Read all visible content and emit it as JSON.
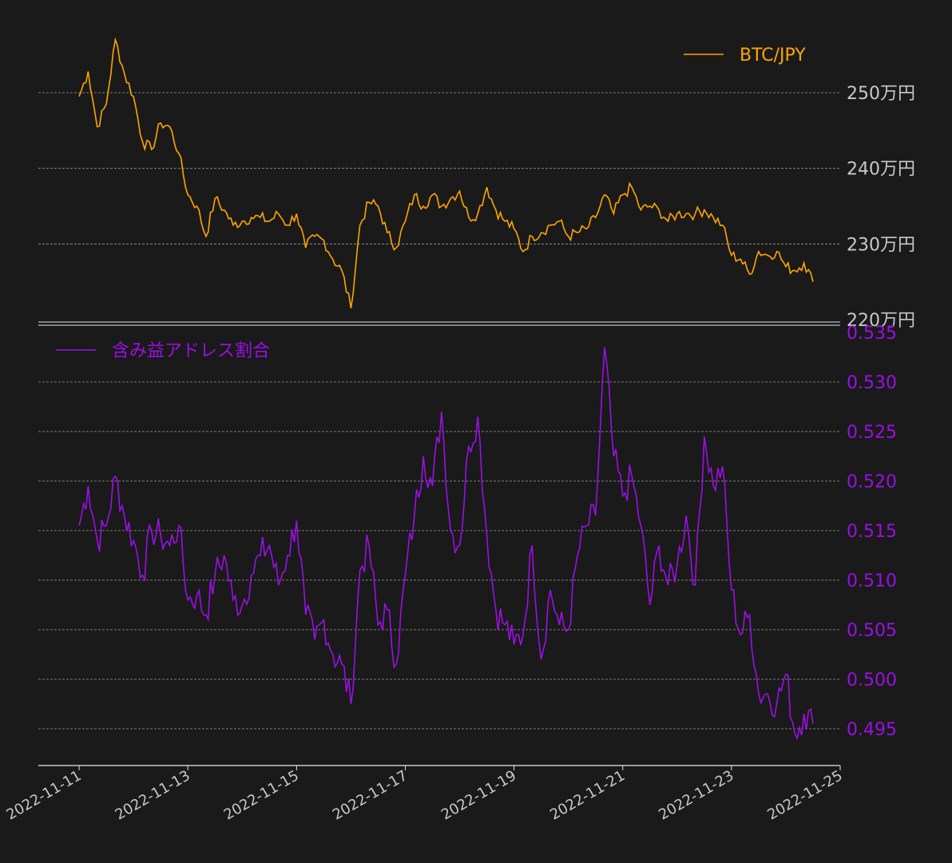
{
  "colors": {
    "background": "#1a1a1a",
    "btc": "#ffa500",
    "ratio": "#9b0fe6",
    "axis_text": "#c8c8c8",
    "grid": "#9a9a9a",
    "spine": "#e6e6e6"
  },
  "chart_data": [
    {
      "type": "line",
      "title": "",
      "xlabel": "",
      "ylabel": "",
      "legend_position": "top-right",
      "grid": true,
      "y_ticks": [
        220,
        230,
        240,
        250
      ],
      "y_tick_labels": [
        "220万円",
        "230万円",
        "240万円",
        "250万円"
      ],
      "ylim": [
        220,
        255
      ],
      "series": [
        {
          "name": "BTC/JPY",
          "color": "#ffa500",
          "x": [
            "2022-11-11 00:00",
            "2022-11-11 04:00",
            "2022-11-11 08:00",
            "2022-11-11 12:00",
            "2022-11-11 16:00",
            "2022-11-11 20:00",
            "2022-11-12 00:00",
            "2022-11-12 04:00",
            "2022-11-12 08:00",
            "2022-11-12 12:00",
            "2022-11-12 16:00",
            "2022-11-12 20:00",
            "2022-11-13 00:00",
            "2022-11-13 04:00",
            "2022-11-13 08:00",
            "2022-11-13 12:00",
            "2022-11-13 16:00",
            "2022-11-13 20:00",
            "2022-11-14 00:00",
            "2022-11-14 04:00",
            "2022-11-14 08:00",
            "2022-11-14 12:00",
            "2022-11-14 16:00",
            "2022-11-14 20:00",
            "2022-11-15 00:00",
            "2022-11-15 04:00",
            "2022-11-15 08:00",
            "2022-11-15 12:00",
            "2022-11-15 16:00",
            "2022-11-15 20:00",
            "2022-11-16 00:00",
            "2022-11-16 04:00",
            "2022-11-16 08:00",
            "2022-11-16 12:00",
            "2022-11-16 16:00",
            "2022-11-16 20:00",
            "2022-11-17 00:00",
            "2022-11-17 04:00",
            "2022-11-17 08:00",
            "2022-11-17 12:00",
            "2022-11-17 16:00",
            "2022-11-17 20:00",
            "2022-11-18 00:00",
            "2022-11-18 04:00",
            "2022-11-18 08:00",
            "2022-11-18 12:00",
            "2022-11-18 16:00",
            "2022-11-18 20:00",
            "2022-11-19 00:00",
            "2022-11-19 04:00",
            "2022-11-19 08:00",
            "2022-11-19 12:00",
            "2022-11-19 16:00",
            "2022-11-19 20:00",
            "2022-11-20 00:00",
            "2022-11-20 04:00",
            "2022-11-20 08:00",
            "2022-11-20 12:00",
            "2022-11-20 16:00",
            "2022-11-20 20:00",
            "2022-11-21 00:00",
            "2022-11-21 04:00",
            "2022-11-21 08:00",
            "2022-11-21 12:00",
            "2022-11-21 16:00",
            "2022-11-21 20:00",
            "2022-11-22 00:00",
            "2022-11-22 04:00",
            "2022-11-22 08:00",
            "2022-11-22 12:00",
            "2022-11-22 16:00",
            "2022-11-22 20:00",
            "2022-11-23 00:00",
            "2022-11-23 04:00",
            "2022-11-23 08:00",
            "2022-11-23 12:00",
            "2022-11-23 16:00",
            "2022-11-23 20:00",
            "2022-11-24 00:00",
            "2022-11-24 04:00",
            "2022-11-24 08:00",
            "2022-11-24 12:00"
          ],
          "values": [
            249.5,
            252.8,
            245.5,
            248.5,
            257.0,
            252.5,
            249.5,
            243.5,
            242.5,
            246.0,
            245.5,
            242.0,
            236.5,
            235.0,
            231.0,
            236.0,
            234.5,
            232.5,
            233.0,
            233.5,
            233.5,
            233.0,
            234.0,
            232.5,
            234.0,
            229.5,
            231.0,
            230.5,
            228.0,
            226.5,
            221.5,
            232.5,
            235.5,
            235.0,
            231.5,
            229.5,
            233.0,
            236.5,
            235.0,
            236.5,
            235.0,
            236.0,
            237.0,
            233.5,
            234.0,
            237.5,
            234.5,
            233.0,
            232.0,
            229.0,
            231.0,
            231.5,
            232.5,
            233.0,
            231.0,
            231.5,
            232.0,
            233.5,
            236.5,
            234.0,
            236.5,
            237.5,
            234.5,
            235.0,
            234.5,
            233.0,
            234.0,
            234.0,
            234.0,
            234.5,
            233.5,
            232.5,
            228.5,
            228.0,
            226.0,
            229.0,
            228.5,
            229.0,
            227.0,
            226.5,
            227.5,
            225.0
          ],
          "x_compact": [
            "2022-11-11 00:00",
            "2022-11-24 12:00"
          ]
        }
      ]
    },
    {
      "type": "line",
      "title": "",
      "xlabel": "",
      "ylabel": "",
      "legend_position": "top-left",
      "grid": true,
      "y_ticks": [
        0.495,
        0.5,
        0.505,
        0.51,
        0.515,
        0.52,
        0.525,
        0.53,
        0.535
      ],
      "y_tick_labels": [
        "0.495",
        "0.500",
        "0.505",
        "0.510",
        "0.515",
        "0.520",
        "0.525",
        "0.530",
        "0.535"
      ],
      "ylim": [
        0.491,
        0.535
      ],
      "x_ticks": [
        "2022-11-11",
        "2022-11-13",
        "2022-11-15",
        "2022-11-17",
        "2022-11-19",
        "2022-11-21",
        "2022-11-23",
        "2022-11-25"
      ],
      "x_tick_labels": [
        "2022-11-11",
        "2022-11-13",
        "2022-11-15",
        "2022-11-17",
        "2022-11-19",
        "2022-11-21",
        "2022-11-23",
        "2022-11-25"
      ],
      "xlim": [
        "2022-11-10 06:00",
        "2022-11-25 00:00"
      ],
      "series": [
        {
          "name": "含み益アドレス割合",
          "color": "#9b0fe6",
          "x": [
            "2022-11-11 00:00",
            "2022-11-11 04:00",
            "2022-11-11 08:00",
            "2022-11-11 12:00",
            "2022-11-11 16:00",
            "2022-11-11 20:00",
            "2022-11-12 00:00",
            "2022-11-12 04:00",
            "2022-11-12 08:00",
            "2022-11-12 12:00",
            "2022-11-12 16:00",
            "2022-11-12 20:00",
            "2022-11-13 00:00",
            "2022-11-13 04:00",
            "2022-11-13 08:00",
            "2022-11-13 12:00",
            "2022-11-13 16:00",
            "2022-11-13 20:00",
            "2022-11-14 00:00",
            "2022-11-14 04:00",
            "2022-11-14 08:00",
            "2022-11-14 12:00",
            "2022-11-14 16:00",
            "2022-11-14 20:00",
            "2022-11-15 00:00",
            "2022-11-15 04:00",
            "2022-11-15 08:00",
            "2022-11-15 12:00",
            "2022-11-15 16:00",
            "2022-11-15 20:00",
            "2022-11-16 00:00",
            "2022-11-16 04:00",
            "2022-11-16 08:00",
            "2022-11-16 12:00",
            "2022-11-16 16:00",
            "2022-11-16 20:00",
            "2022-11-17 00:00",
            "2022-11-17 04:00",
            "2022-11-17 08:00",
            "2022-11-17 12:00",
            "2022-11-17 16:00",
            "2022-11-17 20:00",
            "2022-11-18 00:00",
            "2022-11-18 04:00",
            "2022-11-18 08:00",
            "2022-11-18 12:00",
            "2022-11-18 16:00",
            "2022-11-18 20:00",
            "2022-11-19 00:00",
            "2022-11-19 04:00",
            "2022-11-19 08:00",
            "2022-11-19 12:00",
            "2022-11-19 16:00",
            "2022-11-19 20:00",
            "2022-11-20 00:00",
            "2022-11-20 04:00",
            "2022-11-20 08:00",
            "2022-11-20 12:00",
            "2022-11-20 16:00",
            "2022-11-20 20:00",
            "2022-11-21 00:00",
            "2022-11-21 04:00",
            "2022-11-21 08:00",
            "2022-11-21 12:00",
            "2022-11-21 16:00",
            "2022-11-21 20:00",
            "2022-11-22 00:00",
            "2022-11-22 04:00",
            "2022-11-22 08:00",
            "2022-11-22 12:00",
            "2022-11-22 16:00",
            "2022-11-22 20:00",
            "2022-11-23 00:00",
            "2022-11-23 04:00",
            "2022-11-23 08:00",
            "2022-11-23 12:00",
            "2022-11-23 16:00",
            "2022-11-23 20:00",
            "2022-11-24 00:00",
            "2022-11-24 04:00",
            "2022-11-24 08:00",
            "2022-11-24 12:00"
          ],
          "values": [
            0.5155,
            0.5195,
            0.514,
            0.5155,
            0.5205,
            0.5165,
            0.514,
            0.5105,
            0.515,
            0.5145,
            0.5135,
            0.5155,
            0.508,
            0.5085,
            0.5065,
            0.5105,
            0.5125,
            0.508,
            0.5075,
            0.5105,
            0.5125,
            0.5135,
            0.5095,
            0.5125,
            0.516,
            0.5065,
            0.504,
            0.506,
            0.5025,
            0.5015,
            0.4975,
            0.511,
            0.5135,
            0.5055,
            0.507,
            0.5015,
            0.5105,
            0.5165,
            0.5225,
            0.5195,
            0.527,
            0.515,
            0.5135,
            0.5235,
            0.5265,
            0.5145,
            0.507,
            0.5055,
            0.5035,
            0.5045,
            0.5135,
            0.502,
            0.509,
            0.5055,
            0.505,
            0.5125,
            0.5155,
            0.5165,
            0.5335,
            0.5225,
            0.5185,
            0.5205,
            0.5155,
            0.5075,
            0.5135,
            0.5095,
            0.5115,
            0.5165,
            0.5095,
            0.5245,
            0.5195,
            0.5215,
            0.509,
            0.5045,
            0.5065,
            0.4985,
            0.4985,
            0.4975,
            0.5005,
            0.4945,
            0.4965,
            0.4955
          ]
        }
      ]
    }
  ]
}
